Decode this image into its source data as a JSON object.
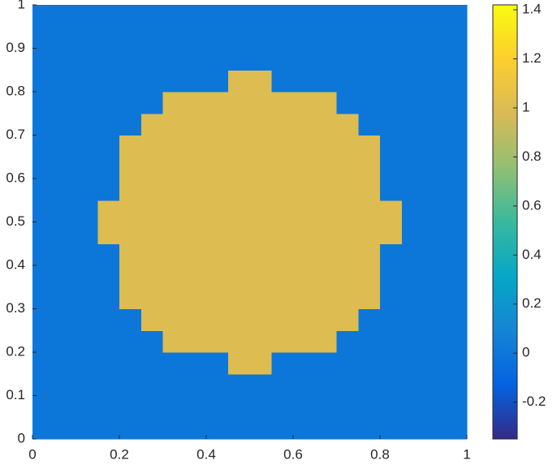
{
  "chart_data": {
    "type": "heatmap",
    "colormap": "parula",
    "xlim": [
      0,
      1
    ],
    "ylim": [
      0,
      1
    ],
    "xticks": [
      0,
      0.2,
      0.4,
      0.6,
      0.8,
      1
    ],
    "yticks": [
      0,
      0.1,
      0.2,
      0.3,
      0.4,
      0.5,
      0.6,
      0.7,
      0.8,
      0.9,
      1
    ],
    "clim": [
      -0.35,
      1.42
    ],
    "cticks": [
      -0.2,
      0,
      0.2,
      0.4,
      0.6,
      0.8,
      1,
      1.2,
      1.4
    ],
    "z": [
      [
        0,
        0,
        0,
        0,
        0,
        0,
        0,
        0,
        0,
        0,
        0,
        0,
        0,
        0,
        0,
        0,
        0,
        0,
        0,
        0
      ],
      [
        0,
        0,
        0,
        0,
        0,
        0,
        0,
        0,
        0,
        0,
        0,
        0,
        0,
        0,
        0,
        0,
        0,
        0,
        0,
        0
      ],
      [
        0,
        0,
        0,
        0,
        0,
        0,
        0,
        0,
        0,
        0,
        0,
        0,
        0,
        0,
        0,
        0,
        0,
        0,
        0,
        0
      ],
      [
        0,
        0,
        0,
        0,
        0,
        0,
        0,
        0,
        0,
        1,
        1,
        0,
        0,
        0,
        0,
        0,
        0,
        0,
        0,
        0
      ],
      [
        0,
        0,
        0,
        0,
        0,
        0,
        1,
        1,
        1,
        1,
        1,
        1,
        1,
        1,
        0,
        0,
        0,
        0,
        0,
        0
      ],
      [
        0,
        0,
        0,
        0,
        0,
        1,
        1,
        1,
        1,
        1,
        1,
        1,
        1,
        1,
        1,
        0,
        0,
        0,
        0,
        0
      ],
      [
        0,
        0,
        0,
        0,
        1,
        1,
        1,
        1,
        1,
        1,
        1,
        1,
        1,
        1,
        1,
        1,
        0,
        0,
        0,
        0
      ],
      [
        0,
        0,
        0,
        0,
        1,
        1,
        1,
        1,
        1,
        1,
        1,
        1,
        1,
        1,
        1,
        1,
        0,
        0,
        0,
        0
      ],
      [
        0,
        0,
        0,
        0,
        1,
        1,
        1,
        1,
        1,
        1,
        1,
        1,
        1,
        1,
        1,
        1,
        0,
        0,
        0,
        0
      ],
      [
        0,
        0,
        0,
        1,
        1,
        1,
        1,
        1,
        1,
        1,
        1,
        1,
        1,
        1,
        1,
        1,
        1,
        0,
        0,
        0
      ],
      [
        0,
        0,
        0,
        1,
        1,
        1,
        1,
        1,
        1,
        1,
        1,
        1,
        1,
        1,
        1,
        1,
        1,
        0,
        0,
        0
      ],
      [
        0,
        0,
        0,
        0,
        1,
        1,
        1,
        1,
        1,
        1,
        1,
        1,
        1,
        1,
        1,
        1,
        0,
        0,
        0,
        0
      ],
      [
        0,
        0,
        0,
        0,
        1,
        1,
        1,
        1,
        1,
        1,
        1,
        1,
        1,
        1,
        1,
        1,
        0,
        0,
        0,
        0
      ],
      [
        0,
        0,
        0,
        0,
        1,
        1,
        1,
        1,
        1,
        1,
        1,
        1,
        1,
        1,
        1,
        1,
        0,
        0,
        0,
        0
      ],
      [
        0,
        0,
        0,
        0,
        0,
        1,
        1,
        1,
        1,
        1,
        1,
        1,
        1,
        1,
        1,
        0,
        0,
        0,
        0,
        0
      ],
      [
        0,
        0,
        0,
        0,
        0,
        0,
        1,
        1,
        1,
        1,
        1,
        1,
        1,
        1,
        0,
        0,
        0,
        0,
        0,
        0
      ],
      [
        0,
        0,
        0,
        0,
        0,
        0,
        0,
        0,
        0,
        1,
        1,
        0,
        0,
        0,
        0,
        0,
        0,
        0,
        0,
        0
      ],
      [
        0,
        0,
        0,
        0,
        0,
        0,
        0,
        0,
        0,
        0,
        0,
        0,
        0,
        0,
        0,
        0,
        0,
        0,
        0,
        0
      ],
      [
        0,
        0,
        0,
        0,
        0,
        0,
        0,
        0,
        0,
        0,
        0,
        0,
        0,
        0,
        0,
        0,
        0,
        0,
        0,
        0
      ],
      [
        0,
        0,
        0,
        0,
        0,
        0,
        0,
        0,
        0,
        0,
        0,
        0,
        0,
        0,
        0,
        0,
        0,
        0,
        0,
        0
      ]
    ]
  }
}
